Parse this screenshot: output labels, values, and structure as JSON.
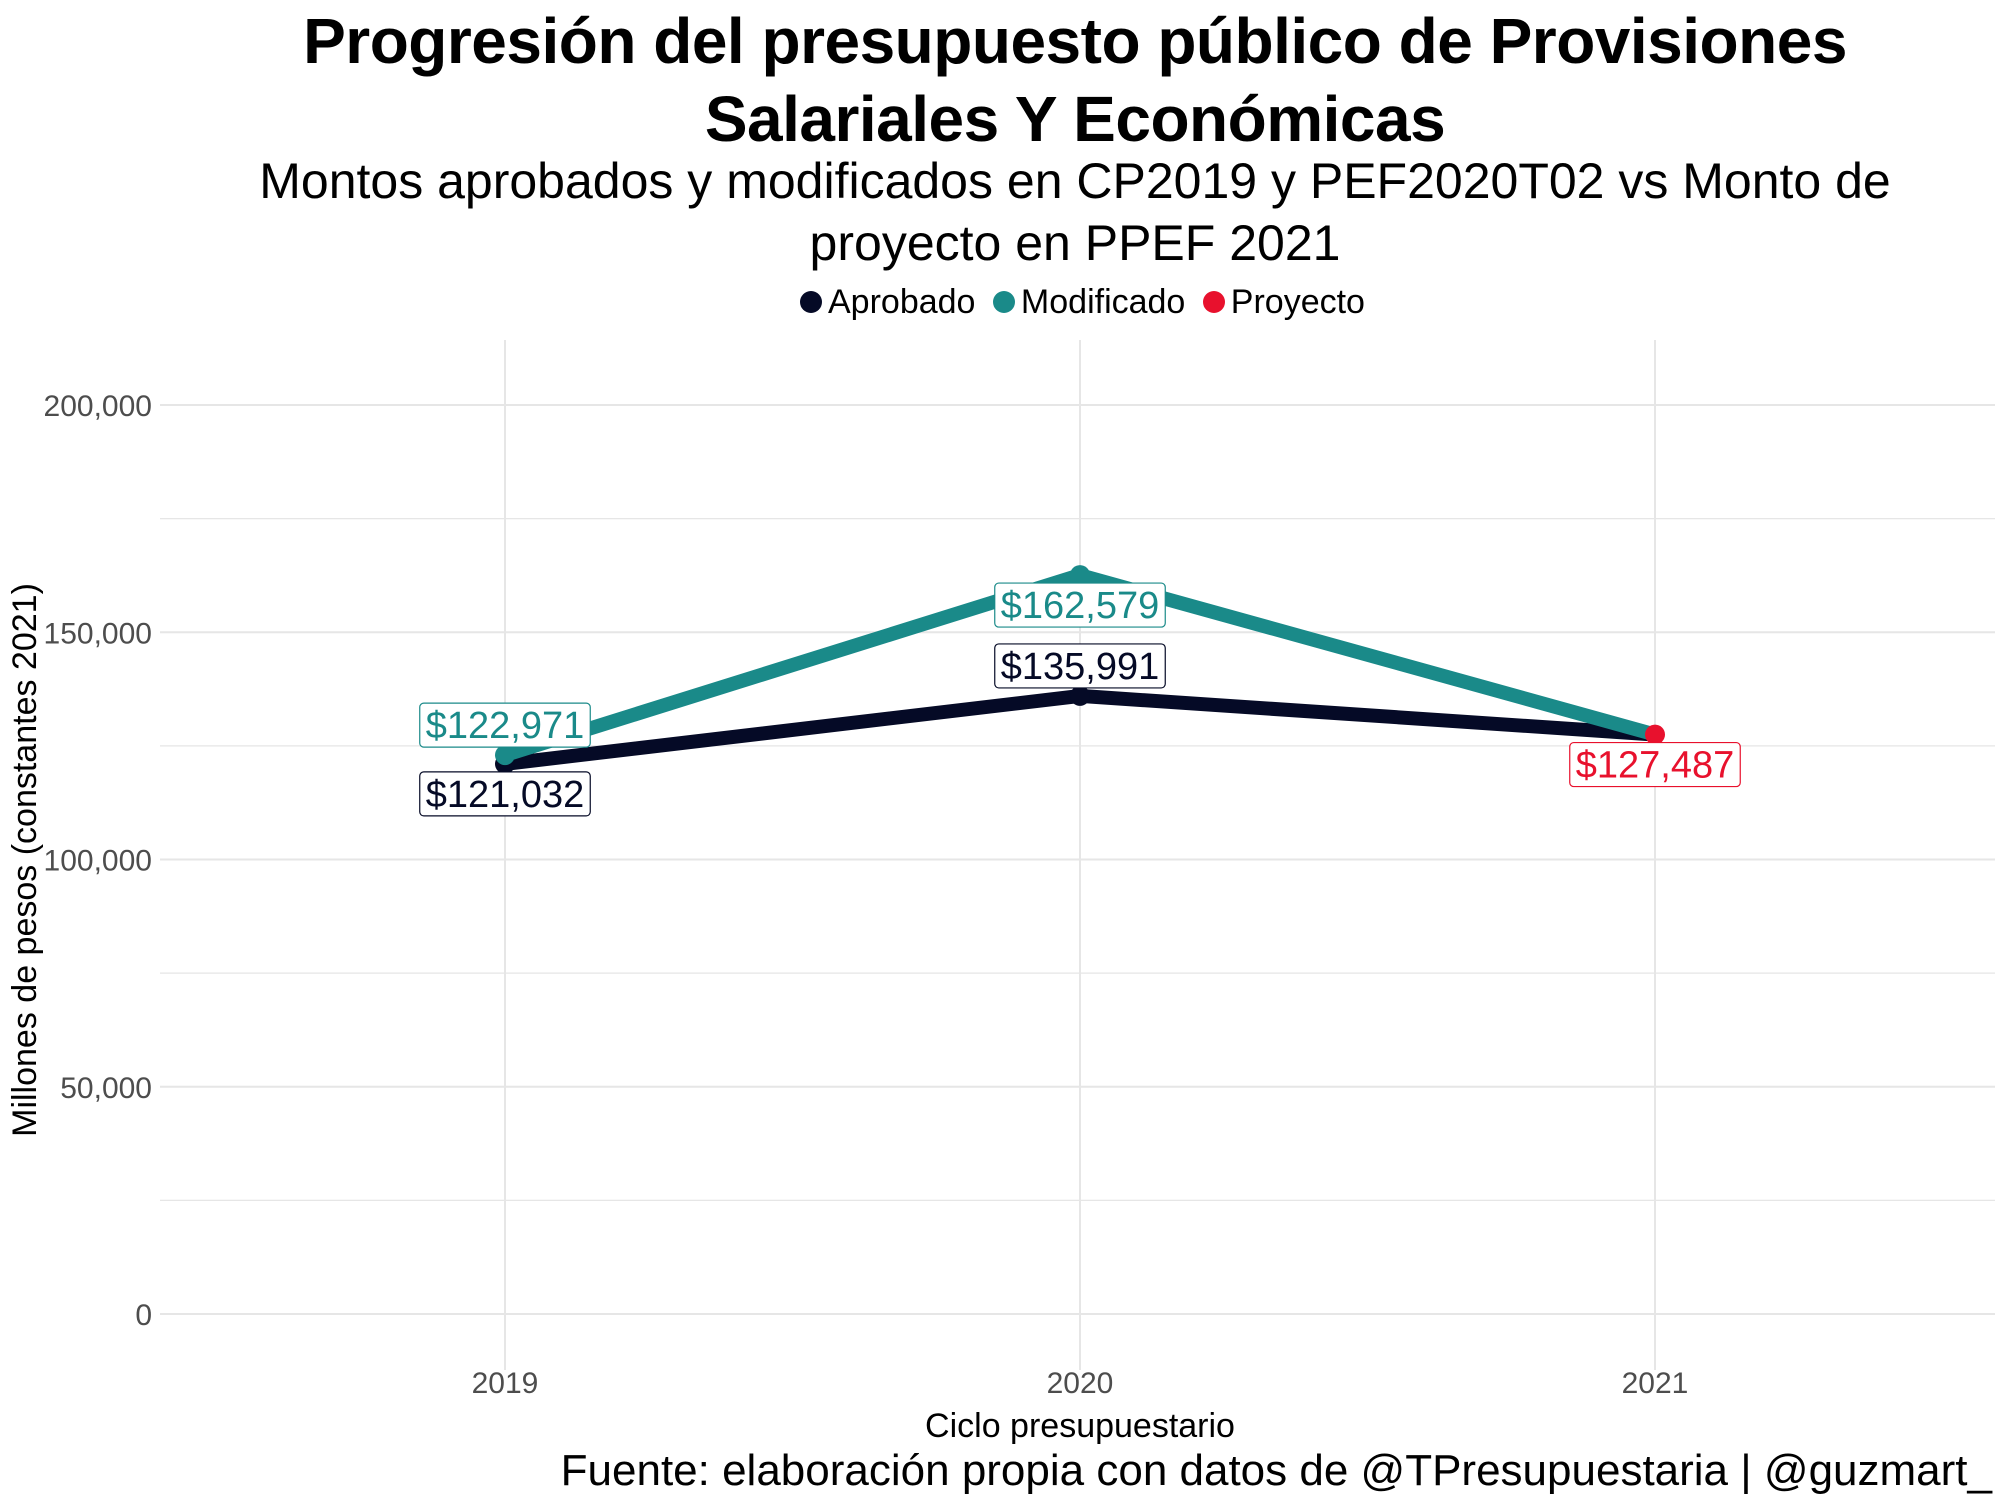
{
  "title": "Progresión del presupuesto público de Provisiones Salariales Y Económicas",
  "subtitle": "Montos aprobados y modificados en CP2019 y PEF2020T02 vs Monto de proyecto en PPEF 2021",
  "caption": "Fuente: elaboración propia con datos de @TPresupuestaria | @guzmart_",
  "colors": {
    "aprobado": "#050a26",
    "modificado": "#1a8a89",
    "proyecto": "#e8112d",
    "grid": "#e6e6e6",
    "tick": "#4d4d4d"
  },
  "legend": [
    {
      "label": "Aprobado",
      "color": "#050a26"
    },
    {
      "label": "Modificado",
      "color": "#1a8a89"
    },
    {
      "label": "Proyecto",
      "color": "#e8112d"
    }
  ],
  "chart_data": {
    "type": "line",
    "xlabel": "Ciclo presupuestario",
    "ylabel": "Millones de pesos (constantes 2021)",
    "x": [
      "2019",
      "2020",
      "2021"
    ],
    "ylim": [
      0,
      215000
    ],
    "yticks": [
      0,
      50000,
      100000,
      150000,
      200000
    ],
    "ytick_labels": [
      "0",
      "50,000",
      "100,000",
      "150,000",
      "200,000"
    ],
    "grid": true,
    "legend_position": "top",
    "series": [
      {
        "name": "Aprobado",
        "color": "#050a26",
        "values": [
          121032,
          135991,
          127487
        ]
      },
      {
        "name": "Modificado",
        "color": "#1a8a89",
        "values": [
          122971,
          162579,
          127487
        ]
      }
    ],
    "points": [
      {
        "series": "Aprobado",
        "x": "2019",
        "y": 121032,
        "color": "#050a26"
      },
      {
        "series": "Modificado",
        "x": "2019",
        "y": 122971,
        "color": "#1a8a89"
      },
      {
        "series": "Aprobado",
        "x": "2020",
        "y": 135991,
        "color": "#050a26"
      },
      {
        "series": "Modificado",
        "x": "2020",
        "y": 162579,
        "color": "#1a8a89"
      },
      {
        "series": "Proyecto",
        "x": "2021",
        "y": 127487,
        "color": "#e8112d"
      }
    ],
    "labels": [
      {
        "x": "2019",
        "y": 122971,
        "text": "$122,971",
        "color": "#1a8a89",
        "pos": "above"
      },
      {
        "x": "2019",
        "y": 121032,
        "text": "$121,032",
        "color": "#050a26",
        "pos": "below"
      },
      {
        "x": "2020",
        "y": 162579,
        "text": "$162,579",
        "color": "#1a8a89",
        "pos": "below"
      },
      {
        "x": "2020",
        "y": 135991,
        "text": "$135,991",
        "color": "#050a26",
        "pos": "above"
      },
      {
        "x": "2021",
        "y": 127487,
        "text": "$127,487",
        "color": "#e8112d",
        "pos": "below"
      }
    ]
  }
}
